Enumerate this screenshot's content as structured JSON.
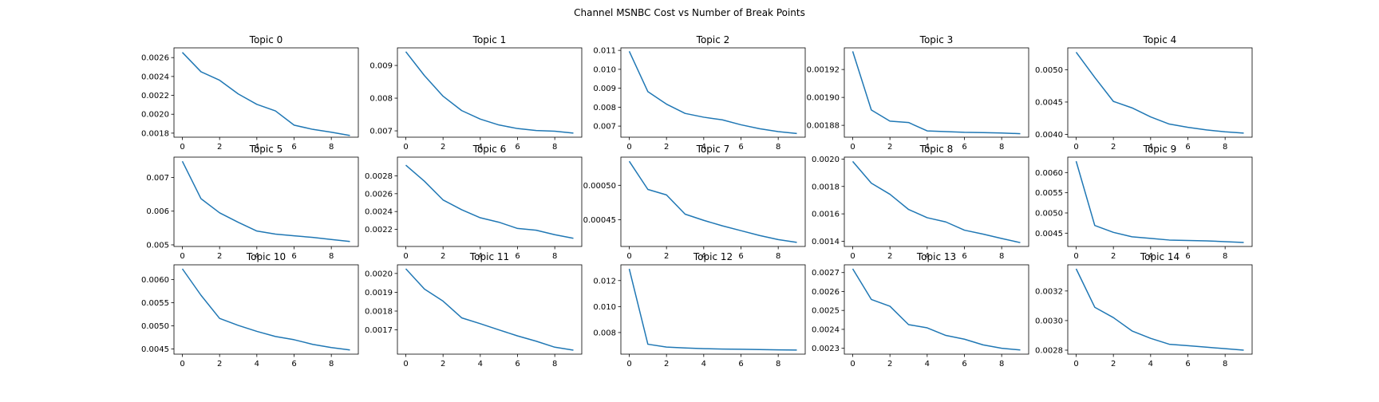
{
  "figure": {
    "suptitle": "Channel MSNBC Cost vs Number of Break Points",
    "line_color": "#1f77b4"
  },
  "chart_data": [
    {
      "type": "line",
      "title": "Topic 0",
      "x": [
        0,
        1,
        2,
        3,
        4,
        5,
        6,
        7,
        8,
        9
      ],
      "values": [
        0.002655,
        0.00245,
        0.00236,
        0.002215,
        0.002105,
        0.002035,
        0.001885,
        0.00184,
        0.00181,
        0.001775
      ],
      "ylim": [
        0.001757,
        0.002703
      ],
      "xticks": [
        0,
        2,
        4,
        6,
        8
      ],
      "yticks": [
        0.0018,
        0.002,
        0.0022,
        0.0024,
        0.0026
      ],
      "ytick_labels": [
        "0.0018",
        "0.0020",
        "0.0022",
        "0.0024",
        "0.0026"
      ]
    },
    {
      "type": "line",
      "title": "Topic 1",
      "x": [
        0,
        1,
        2,
        3,
        4,
        5,
        6,
        7,
        8,
        9
      ],
      "values": [
        0.00942,
        0.00869,
        0.00806,
        0.00762,
        0.00736,
        0.00718,
        0.00707,
        0.00701,
        0.00699,
        0.00693
      ],
      "ylim": [
        0.006806,
        0.009538
      ],
      "xticks": [
        0,
        2,
        4,
        6,
        8
      ],
      "yticks": [
        0.007,
        0.008,
        0.009
      ],
      "ytick_labels": [
        "0.007",
        "0.008",
        "0.009"
      ]
    },
    {
      "type": "line",
      "title": "Topic 2",
      "x": [
        0,
        1,
        2,
        3,
        4,
        5,
        6,
        7,
        8,
        9
      ],
      "values": [
        0.01095,
        0.00882,
        0.00816,
        0.00767,
        0.00747,
        0.00733,
        0.00707,
        0.00686,
        0.00671,
        0.00661
      ],
      "ylim": [
        0.006414,
        0.011133
      ],
      "xticks": [
        0,
        2,
        4,
        6,
        8
      ],
      "yticks": [
        0.007,
        0.008,
        0.009,
        0.01,
        0.011
      ],
      "ytick_labels": [
        "0.007",
        "0.008",
        "0.009",
        "0.010",
        "0.011"
      ]
    },
    {
      "type": "line",
      "title": "Topic 3",
      "x": [
        0,
        1,
        2,
        3,
        4,
        5,
        6,
        7,
        8,
        9
      ],
      "values": [
        0.001933,
        0.001891,
        0.001883,
        0.001882,
        0.001876,
        0.0018755,
        0.001875,
        0.0018748,
        0.0018745,
        0.001874
      ],
      "ylim": [
        0.0018715,
        0.0019355
      ],
      "xticks": [
        0,
        2,
        4,
        6,
        8
      ],
      "yticks": [
        0.00188,
        0.0019,
        0.00192
      ],
      "ytick_labels": [
        "0.00188",
        "0.00190",
        "0.00192"
      ]
    },
    {
      "type": "line",
      "title": "Topic 4",
      "x": [
        0,
        1,
        2,
        3,
        4,
        5,
        6,
        7,
        8,
        9
      ],
      "values": [
        0.00527,
        0.00488,
        0.00451,
        0.00441,
        0.00427,
        0.00416,
        0.00411,
        0.00407,
        0.00404,
        0.00402
      ],
      "ylim": [
        0.003957,
        0.005337
      ],
      "xticks": [
        0,
        2,
        4,
        6,
        8
      ],
      "yticks": [
        0.004,
        0.0045,
        0.005
      ],
      "ytick_labels": [
        "0.0040",
        "0.0045",
        "0.0050"
      ]
    },
    {
      "type": "line",
      "title": "Topic 5",
      "x": [
        0,
        1,
        2,
        3,
        4,
        5,
        6,
        7,
        8,
        9
      ],
      "values": [
        0.00748,
        0.00637,
        0.00595,
        0.00567,
        0.00541,
        0.00532,
        0.00527,
        0.00522,
        0.00516,
        0.0051
      ],
      "ylim": [
        0.004952,
        0.007603
      ],
      "xticks": [
        0,
        2,
        4,
        6,
        8
      ],
      "yticks": [
        0.005,
        0.006,
        0.007
      ],
      "ytick_labels": [
        "0.005",
        "0.006",
        "0.007"
      ]
    },
    {
      "type": "line",
      "title": "Topic 6",
      "x": [
        0,
        1,
        2,
        3,
        4,
        5,
        6,
        7,
        8,
        9
      ],
      "values": [
        0.00292,
        0.00274,
        0.00253,
        0.00242,
        0.00233,
        0.00228,
        0.00221,
        0.00219,
        0.00214,
        0.0021
      ],
      "ylim": [
        0.002008,
        0.00301
      ],
      "xticks": [
        0,
        2,
        4,
        6,
        8
      ],
      "yticks": [
        0.0022,
        0.0024,
        0.0026,
        0.0028
      ],
      "ytick_labels": [
        "0.0022",
        "0.0024",
        "0.0026",
        "0.0028"
      ]
    },
    {
      "type": "line",
      "title": "Topic 7",
      "x": [
        0,
        1,
        2,
        3,
        4,
        5,
        6,
        7,
        8,
        9
      ],
      "values": [
        0.000535,
        0.000494,
        0.000486,
        0.000458,
        0.000449,
        0.000441,
        0.000434,
        0.000427,
        0.000421,
        0.000417
      ],
      "ylim": [
        0.000411,
        0.000541
      ],
      "xticks": [
        0,
        2,
        4,
        6,
        8
      ],
      "yticks": [
        0.00045,
        0.0005
      ],
      "ytick_labels": [
        "0.00045",
        "0.00050"
      ]
    },
    {
      "type": "line",
      "title": "Topic 8",
      "x": [
        0,
        1,
        2,
        3,
        4,
        5,
        6,
        7,
        8,
        9
      ],
      "values": [
        0.001983,
        0.001824,
        0.001743,
        0.001632,
        0.001572,
        0.001541,
        0.001481,
        0.001452,
        0.00142,
        0.00139
      ],
      "ylim": [
        0.001362,
        0.002014
      ],
      "xticks": [
        0,
        2,
        4,
        6,
        8
      ],
      "yticks": [
        0.0014,
        0.0016,
        0.0018,
        0.002
      ],
      "ytick_labels": [
        "0.0014",
        "0.0016",
        "0.0018",
        "0.0020"
      ]
    },
    {
      "type": "line",
      "title": "Topic 9",
      "x": [
        0,
        1,
        2,
        3,
        4,
        5,
        6,
        7,
        8,
        9
      ],
      "values": [
        0.00628,
        0.00469,
        0.00452,
        0.00441,
        0.00437,
        0.00433,
        0.00432,
        0.00431,
        0.00429,
        0.00427
      ],
      "ylim": [
        0.004171,
        0.006381
      ],
      "xticks": [
        0,
        2,
        4,
        6,
        8
      ],
      "yticks": [
        0.0045,
        0.005,
        0.0055,
        0.006
      ],
      "ytick_labels": [
        "0.0045",
        "0.0050",
        "0.0055",
        "0.0060"
      ]
    },
    {
      "type": "line",
      "title": "Topic 10",
      "x": [
        0,
        1,
        2,
        3,
        4,
        5,
        6,
        7,
        8,
        9
      ],
      "values": [
        0.00623,
        0.00566,
        0.00516,
        0.00501,
        0.00488,
        0.00477,
        0.0047,
        0.0046,
        0.00453,
        0.00448
      ],
      "ylim": [
        0.004389,
        0.006316
      ],
      "xticks": [
        0,
        2,
        4,
        6,
        8
      ],
      "yticks": [
        0.0045,
        0.005,
        0.0055,
        0.006
      ],
      "ytick_labels": [
        "0.0045",
        "0.0050",
        "0.0055",
        "0.0060"
      ]
    },
    {
      "type": "line",
      "title": "Topic 11",
      "x": [
        0,
        1,
        2,
        3,
        4,
        5,
        6,
        7,
        8,
        9
      ],
      "values": [
        0.002025,
        0.001917,
        0.001853,
        0.001764,
        0.001733,
        0.0017,
        0.001668,
        0.00164,
        0.001608,
        0.001592
      ],
      "ylim": [
        0.001571,
        0.002046
      ],
      "xticks": [
        0,
        2,
        4,
        6,
        8
      ],
      "yticks": [
        0.0017,
        0.0018,
        0.0019,
        0.002
      ],
      "ytick_labels": [
        "0.0017",
        "0.0018",
        "0.0019",
        "0.0020"
      ]
    },
    {
      "type": "line",
      "title": "Topic 12",
      "x": [
        0,
        1,
        2,
        3,
        4,
        5,
        6,
        7,
        8,
        9
      ],
      "values": [
        0.0129,
        0.0071,
        0.00688,
        0.00681,
        0.00676,
        0.00673,
        0.00671,
        0.00669,
        0.00667,
        0.00665
      ],
      "ylim": [
        0.006337,
        0.013213
      ],
      "xticks": [
        0,
        2,
        4,
        6,
        8
      ],
      "yticks": [
        0.008,
        0.01,
        0.012
      ],
      "ytick_labels": [
        "0.008",
        "0.010",
        "0.012"
      ]
    },
    {
      "type": "line",
      "title": "Topic 13",
      "x": [
        0,
        1,
        2,
        3,
        4,
        5,
        6,
        7,
        8,
        9
      ],
      "values": [
        0.00272,
        0.002558,
        0.002522,
        0.002425,
        0.002408,
        0.002368,
        0.002348,
        0.002318,
        0.0023,
        0.002291
      ],
      "ylim": [
        0.002269,
        0.002741
      ],
      "xticks": [
        0,
        2,
        4,
        6,
        8
      ],
      "yticks": [
        0.0023,
        0.0024,
        0.0025,
        0.0026,
        0.0027
      ],
      "ytick_labels": [
        "0.0023",
        "0.0024",
        "0.0025",
        "0.0026",
        "0.0027"
      ]
    },
    {
      "type": "line",
      "title": "Topic 14",
      "x": [
        0,
        1,
        2,
        3,
        4,
        5,
        6,
        7,
        8,
        9
      ],
      "values": [
        0.00335,
        0.00309,
        0.00302,
        0.00293,
        0.00288,
        0.00284,
        0.00283,
        0.00282,
        0.00281,
        0.0028
      ],
      "ylim": [
        0.002773,
        0.003377
      ],
      "xticks": [
        0,
        2,
        4,
        6,
        8
      ],
      "yticks": [
        0.0028,
        0.003,
        0.0032
      ],
      "ytick_labels": [
        "0.0028",
        "0.0030",
        "0.0032"
      ]
    }
  ]
}
